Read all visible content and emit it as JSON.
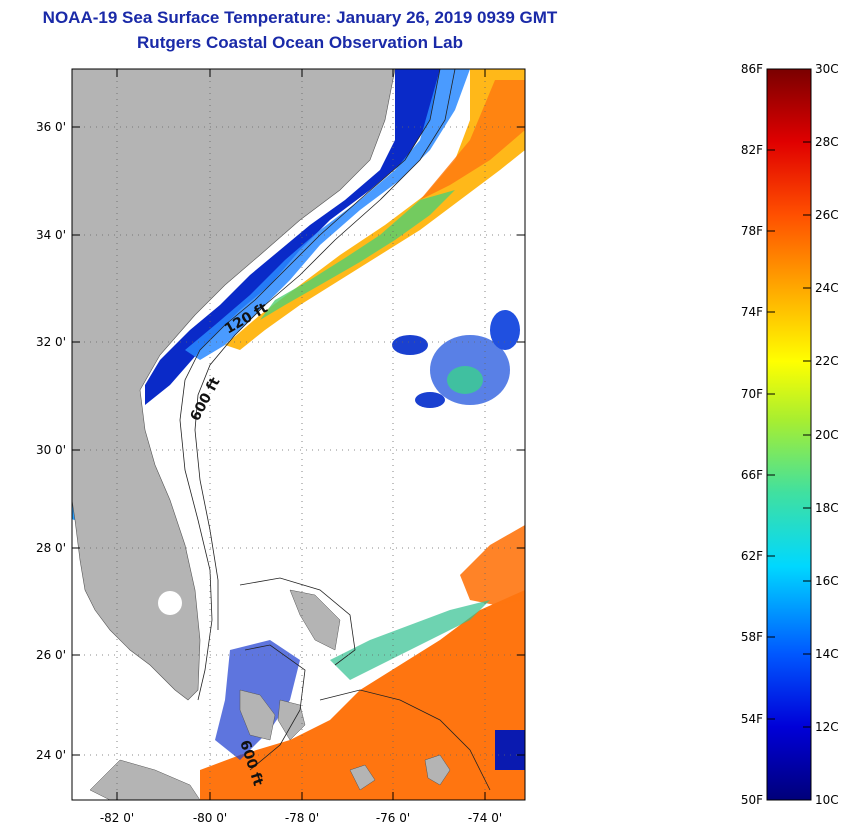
{
  "header": {
    "title_line1": "NOAA-19 Sea Surface Temperature:  January 26, 2019 0939 GMT",
    "title_line2": "Rutgers Coastal Ocean Observation Lab"
  },
  "map": {
    "lat_labels": [
      "36 0'",
      "34 0'",
      "32 0'",
      "30 0'",
      "28 0'",
      "26 0'",
      "24 0'"
    ],
    "lon_labels": [
      "-82 0'",
      "-80 0'",
      "-78 0'",
      "-76 0'",
      "-74 0'"
    ],
    "contour_labels": [
      "120 ft",
      "600 ft",
      "600 ft"
    ]
  },
  "colorbar": {
    "fahrenheit_labels": [
      "86F",
      "82F",
      "78F",
      "74F",
      "70F",
      "66F",
      "62F",
      "58F",
      "54F",
      "50F"
    ],
    "celsius_labels": [
      "30C",
      "28C",
      "26C",
      "24C",
      "22C",
      "20C",
      "18C",
      "16C",
      "14C",
      "12C",
      "10C"
    ]
  },
  "colors": {
    "title": "#1a2aa8",
    "land": "#b4b4b4",
    "cold": "#0a1ab0",
    "warm": "#ff7010"
  }
}
